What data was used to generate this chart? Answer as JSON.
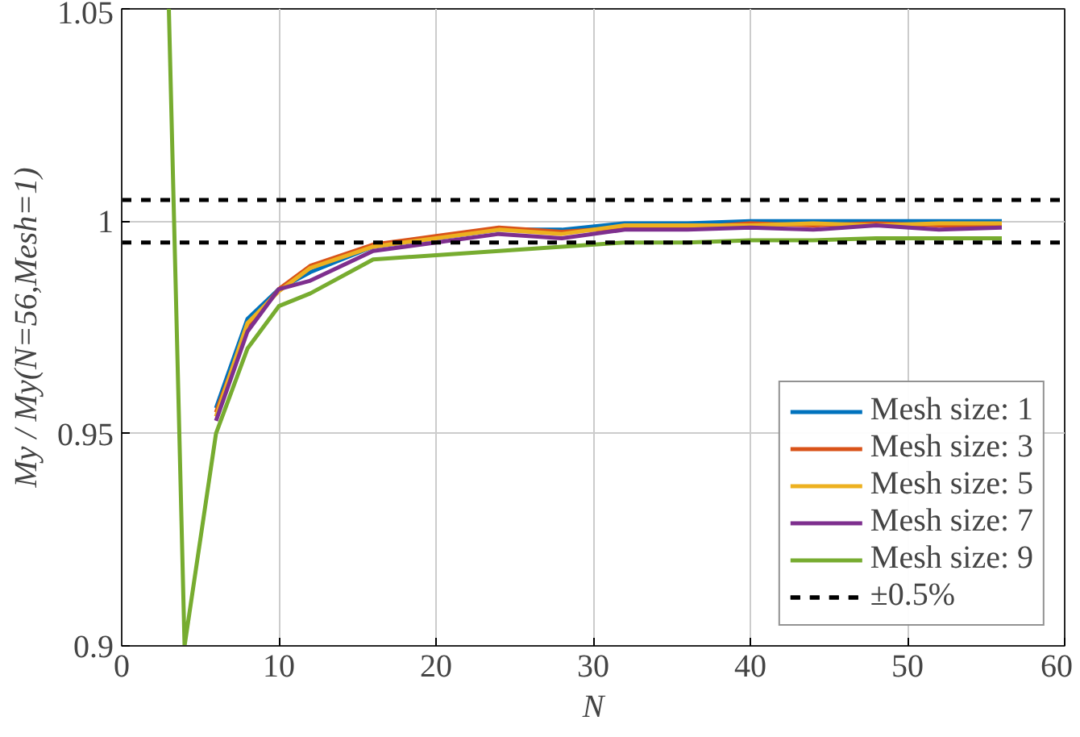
{
  "chart_data": {
    "type": "line",
    "xlabel": "N",
    "ylabel": "My / My(N=56,Mesh=1)",
    "x": [
      3,
      4,
      6,
      8,
      10,
      12,
      16,
      20,
      24,
      28,
      32,
      36,
      40,
      44,
      48,
      52,
      56
    ],
    "series": [
      {
        "name": "Mesh size: 1",
        "color": "#0072bd",
        "values": [
          null,
          null,
          0.956,
          0.977,
          0.984,
          0.988,
          0.994,
          0.996,
          0.998,
          0.998,
          0.9995,
          0.9995,
          1.0,
          1.0,
          1.0,
          1.0,
          1.0
        ]
      },
      {
        "name": "Mesh size: 3",
        "color": "#d95319",
        "values": [
          null,
          null,
          0.955,
          0.975,
          0.984,
          0.9895,
          0.9945,
          0.9965,
          0.9985,
          0.9975,
          0.9985,
          0.9985,
          0.9995,
          0.999,
          0.9995,
          0.999,
          0.999
        ]
      },
      {
        "name": "Mesh size: 5",
        "color": "#edb120",
        "values": [
          null,
          null,
          0.954,
          0.976,
          0.9835,
          0.989,
          0.994,
          0.996,
          0.998,
          0.997,
          0.999,
          0.999,
          0.999,
          0.9995,
          0.999,
          0.9995,
          0.9995
        ]
      },
      {
        "name": "Mesh size: 7",
        "color": "#7e2f8e",
        "values": [
          null,
          null,
          0.953,
          0.974,
          0.984,
          0.986,
          0.993,
          0.995,
          0.997,
          0.996,
          0.998,
          0.998,
          0.9985,
          0.998,
          0.999,
          0.998,
          0.9985
        ]
      },
      {
        "name": "Mesh size: 9",
        "color": "#77ac30",
        "values": [
          1.05,
          0.9,
          0.95,
          0.97,
          0.98,
          0.983,
          0.991,
          0.992,
          0.993,
          0.994,
          0.995,
          0.995,
          0.9955,
          0.9955,
          0.996,
          0.996,
          0.996
        ]
      }
    ],
    "ref_lines": [
      {
        "axis": "y",
        "value": 1.005,
        "color": "#000000",
        "line_style": "dashed"
      },
      {
        "axis": "y",
        "value": 0.995,
        "color": "#000000",
        "line_style": "dashed"
      }
    ],
    "annotations": [
      "±0.5%"
    ],
    "xlim": [
      0,
      60
    ],
    "xticks": [
      0,
      10,
      20,
      30,
      40,
      50,
      60
    ],
    "ylim": [
      0.9,
      1.05
    ],
    "yticks": [
      0.9,
      0.95,
      1,
      1.05
    ],
    "grid": true,
    "legend": "bottom right",
    "line_style": "solid",
    "marker": "none"
  }
}
